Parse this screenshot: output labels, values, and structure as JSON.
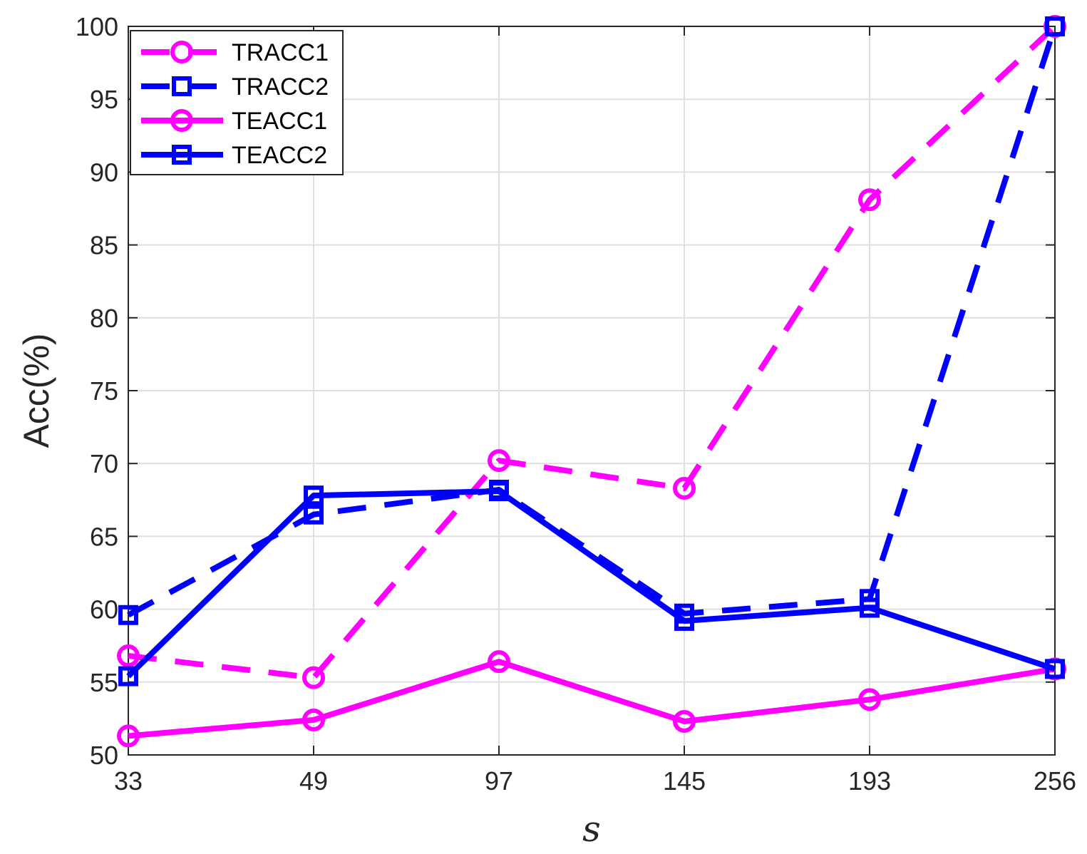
{
  "chart_data": {
    "type": "line",
    "categories": [
      "33",
      "49",
      "97",
      "145",
      "193",
      "256"
    ],
    "xlabel": "s",
    "ylabel": "Acc(%)",
    "ylim": [
      50,
      100
    ],
    "yticks": [
      50,
      55,
      60,
      65,
      70,
      75,
      80,
      85,
      90,
      95,
      100
    ],
    "grid": true,
    "legend_position": "top-left",
    "series": [
      {
        "name": "TRACC1",
        "color": "#ff00ff",
        "line": "dashed",
        "marker": "circle",
        "values": [
          56.8,
          55.3,
          70.2,
          68.3,
          88.1,
          100
        ]
      },
      {
        "name": "TRACC2",
        "color": "#0000ff",
        "line": "dashed",
        "marker": "square",
        "values": [
          59.6,
          66.5,
          68.2,
          59.7,
          60.7,
          100
        ]
      },
      {
        "name": "TEACC1",
        "color": "#ff00ff",
        "line": "solid",
        "marker": "circle",
        "values": [
          51.3,
          52.4,
          56.4,
          52.3,
          53.8,
          55.9
        ]
      },
      {
        "name": "TEACC2",
        "color": "#0000ff",
        "line": "solid",
        "marker": "square",
        "values": [
          55.4,
          67.8,
          68.1,
          59.2,
          60.1,
          55.9
        ]
      }
    ]
  }
}
